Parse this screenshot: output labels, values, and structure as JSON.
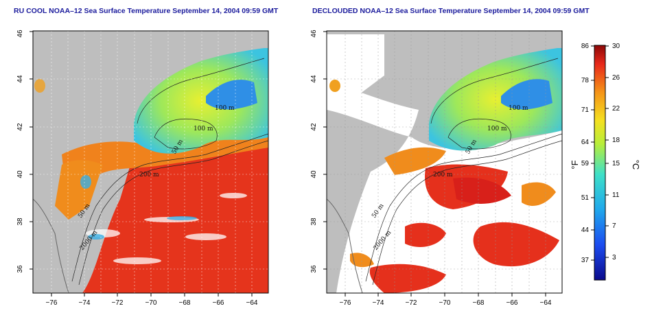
{
  "panels": [
    {
      "title": "RU COOL NOAA–12 Sea Surface Temperature September 14, 2004 09:59 GMT",
      "contour_labels": [
        "100 m",
        "100 m",
        "50 m",
        "200 m",
        "50 m",
        "2000 m"
      ]
    },
    {
      "title": "DECLOUDED NOAA–12 Sea Surface Temperature September 14, 2004 09:59 GMT",
      "contour_labels": [
        "100 m",
        "100 m",
        "50 m",
        "200 m",
        "50 m",
        "2000 m"
      ]
    }
  ],
  "axes": {
    "lon_ticks": [
      "−76",
      "−74",
      "−72",
      "−70",
      "−68",
      "−66",
      "−64"
    ],
    "lat_ticks": [
      "36",
      "38",
      "40",
      "42",
      "44",
      "46"
    ]
  },
  "colorbar": {
    "fahrenheit_ticks": [
      "86",
      "78",
      "71",
      "64",
      "59",
      "51",
      "44",
      "37"
    ],
    "celsius_ticks": [
      "30",
      "26",
      "22",
      "18",
      "15",
      "11",
      "7",
      "3"
    ],
    "fahrenheit_unit": "°F",
    "celsius_unit": "°C"
  },
  "colors": {
    "land": "#bebebe",
    "cloud": "#ffffff",
    "warm": "#e8251a",
    "cool": "#35c6d8",
    "title": "#1a1a9c"
  }
}
